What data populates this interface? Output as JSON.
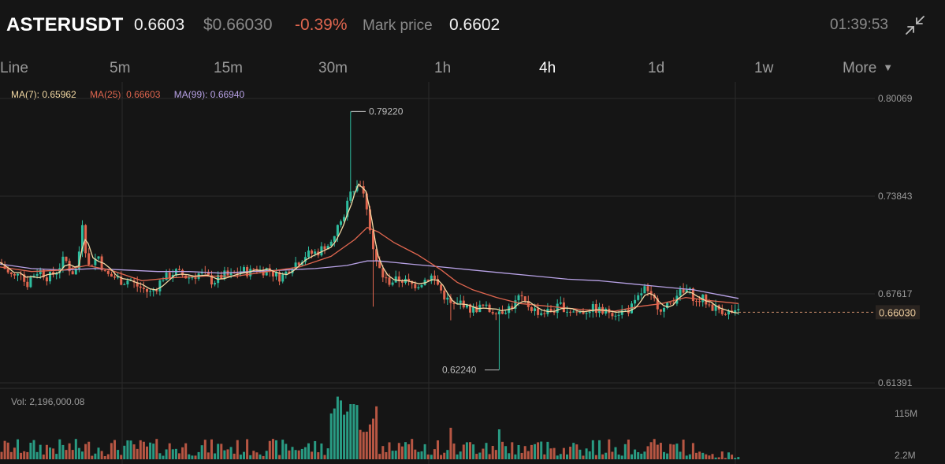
{
  "header": {
    "symbol": "ASTERUSDT",
    "last_price": "0.6603",
    "usd_price": "$0.66030",
    "change": "-0.39%",
    "mark_price_label": "Mark price",
    "mark_price": "0.6602",
    "time": "01:39:53",
    "collapse_icon": "collapse-arrows-icon"
  },
  "tabs": [
    {
      "label": "Line",
      "active": false
    },
    {
      "label": "5m",
      "active": false
    },
    {
      "label": "15m",
      "active": false
    },
    {
      "label": "30m",
      "active": false
    },
    {
      "label": "1h",
      "active": false
    },
    {
      "label": "4h",
      "active": true
    },
    {
      "label": "1d",
      "active": false
    },
    {
      "label": "1w",
      "active": false
    },
    {
      "label": "More",
      "active": false
    }
  ],
  "legend": {
    "ma7": "MA(7): 0.65962",
    "ma25": "MA(25): 0.66603",
    "ma99": "MA(99): 0.66940"
  },
  "vol_label": "Vol: 2,196,000.08",
  "colors": {
    "background": "#151515",
    "up": "#2ebd9f",
    "down": "#e0664f",
    "ma7": "#f3d9a4",
    "ma25": "#e0664f",
    "ma99": "#b8a2e6",
    "grid": "#2a2a2a",
    "axis_text": "#9a9a9a"
  },
  "chart_data": {
    "type": "candlestick",
    "price_axis_ticks": [
      "0.80069",
      "0.73843",
      "0.67617",
      "0.61391"
    ],
    "price_ylim": [
      0.61391,
      0.80069
    ],
    "current_price_label": "0.66030",
    "annotations": {
      "high": "0.79220",
      "low": "0.62240"
    },
    "volume_axis_ticks": [
      "115M",
      "2.2M"
    ],
    "ma_values": {
      "ma7": 0.65962,
      "ma25": 0.66603,
      "ma99": 0.6694
    },
    "price_path": [
      [
        0,
        0.693
      ],
      [
        5,
        0.69
      ],
      [
        10,
        0.686
      ],
      [
        18,
        0.683
      ],
      [
        25,
        0.69
      ],
      [
        33,
        0.677
      ],
      [
        40,
        0.684
      ],
      [
        50,
        0.688
      ],
      [
        60,
        0.683
      ],
      [
        70,
        0.686
      ],
      [
        75,
        0.69
      ],
      [
        82,
        0.696
      ],
      [
        88,
        0.689
      ],
      [
        95,
        0.685
      ],
      [
        100,
        0.698
      ],
      [
        104,
        0.722
      ],
      [
        108,
        0.704
      ],
      [
        112,
        0.69
      ],
      [
        118,
        0.694
      ],
      [
        125,
        0.697
      ],
      [
        132,
        0.686
      ],
      [
        140,
        0.684
      ],
      [
        148,
        0.683
      ],
      [
        156,
        0.68
      ],
      [
        164,
        0.682
      ],
      [
        172,
        0.678
      ],
      [
        180,
        0.676
      ],
      [
        190,
        0.673
      ],
      [
        198,
        0.676
      ],
      [
        206,
        0.683
      ],
      [
        214,
        0.684
      ],
      [
        222,
        0.687
      ],
      [
        230,
        0.685
      ],
      [
        238,
        0.683
      ],
      [
        246,
        0.684
      ],
      [
        254,
        0.686
      ],
      [
        262,
        0.684
      ],
      [
        270,
        0.68
      ],
      [
        276,
        0.682
      ],
      [
        284,
        0.685
      ],
      [
        292,
        0.684
      ],
      [
        300,
        0.686
      ],
      [
        308,
        0.688
      ],
      [
        316,
        0.686
      ],
      [
        324,
        0.69
      ],
      [
        332,
        0.687
      ],
      [
        340,
        0.689
      ],
      [
        348,
        0.685
      ],
      [
        356,
        0.683
      ],
      [
        364,
        0.687
      ],
      [
        372,
        0.692
      ],
      [
        380,
        0.694
      ],
      [
        388,
        0.698
      ],
      [
        396,
        0.699
      ],
      [
        404,
        0.7
      ],
      [
        412,
        0.704
      ],
      [
        420,
        0.705
      ],
      [
        426,
        0.712
      ],
      [
        432,
        0.722
      ],
      [
        436,
        0.719
      ],
      [
        440,
        0.73
      ],
      [
        446,
        0.745
      ],
      [
        450,
        0.74
      ],
      [
        455,
        0.748
      ],
      [
        460,
        0.738
      ],
      [
        464,
        0.734
      ],
      [
        468,
        0.721
      ],
      [
        472,
        0.706
      ],
      [
        476,
        0.695
      ],
      [
        480,
        0.69
      ],
      [
        486,
        0.684
      ],
      [
        492,
        0.68
      ],
      [
        500,
        0.681
      ],
      [
        508,
        0.682
      ],
      [
        516,
        0.68
      ],
      [
        524,
        0.678
      ],
      [
        532,
        0.679
      ],
      [
        540,
        0.682
      ],
      [
        548,
        0.684
      ],
      [
        556,
        0.678
      ],
      [
        562,
        0.672
      ],
      [
        568,
        0.668
      ],
      [
        574,
        0.664
      ],
      [
        580,
        0.665
      ],
      [
        586,
        0.668
      ],
      [
        592,
        0.663
      ],
      [
        598,
        0.662
      ],
      [
        606,
        0.663
      ],
      [
        614,
        0.664
      ],
      [
        622,
        0.661
      ],
      [
        630,
        0.662
      ],
      [
        636,
        0.661
      ],
      [
        644,
        0.663
      ],
      [
        652,
        0.665
      ],
      [
        658,
        0.67
      ],
      [
        664,
        0.667
      ],
      [
        672,
        0.664
      ],
      [
        680,
        0.661
      ],
      [
        688,
        0.66
      ],
      [
        696,
        0.661
      ],
      [
        704,
        0.662
      ],
      [
        712,
        0.665
      ],
      [
        718,
        0.662
      ],
      [
        726,
        0.661
      ],
      [
        734,
        0.66
      ],
      [
        742,
        0.661
      ],
      [
        750,
        0.663
      ],
      [
        758,
        0.662
      ],
      [
        766,
        0.66
      ],
      [
        774,
        0.661
      ],
      [
        782,
        0.66
      ],
      [
        790,
        0.661
      ],
      [
        798,
        0.662
      ],
      [
        806,
        0.666
      ],
      [
        812,
        0.672
      ],
      [
        818,
        0.676
      ],
      [
        824,
        0.67
      ],
      [
        830,
        0.668
      ],
      [
        836,
        0.664
      ],
      [
        842,
        0.662
      ],
      [
        848,
        0.665
      ],
      [
        854,
        0.668
      ],
      [
        860,
        0.674
      ],
      [
        866,
        0.672
      ],
      [
        872,
        0.675
      ],
      [
        878,
        0.672
      ],
      [
        884,
        0.666
      ],
      [
        890,
        0.67
      ],
      [
        896,
        0.667
      ],
      [
        902,
        0.664
      ],
      [
        908,
        0.663
      ],
      [
        914,
        0.662
      ],
      [
        920,
        0.661
      ],
      [
        926,
        0.66
      ],
      [
        932,
        0.659
      ],
      [
        937,
        0.6603
      ]
    ],
    "ma25_path": [
      [
        0,
        0.69
      ],
      [
        40,
        0.687
      ],
      [
        80,
        0.688
      ],
      [
        110,
        0.691
      ],
      [
        140,
        0.688
      ],
      [
        180,
        0.681
      ],
      [
        220,
        0.683
      ],
      [
        260,
        0.684
      ],
      [
        300,
        0.684
      ],
      [
        340,
        0.687
      ],
      [
        380,
        0.69
      ],
      [
        420,
        0.697
      ],
      [
        450,
        0.708
      ],
      [
        466,
        0.716
      ],
      [
        480,
        0.713
      ],
      [
        500,
        0.706
      ],
      [
        530,
        0.698
      ],
      [
        560,
        0.688
      ],
      [
        580,
        0.68
      ],
      [
        600,
        0.675
      ],
      [
        630,
        0.67
      ],
      [
        660,
        0.666
      ],
      [
        700,
        0.664
      ],
      [
        740,
        0.662
      ],
      [
        780,
        0.661
      ],
      [
        810,
        0.664
      ],
      [
        840,
        0.666
      ],
      [
        870,
        0.67
      ],
      [
        900,
        0.668
      ],
      [
        937,
        0.666
      ]
    ],
    "ma99_path": [
      [
        0,
        0.692
      ],
      [
        40,
        0.689
      ],
      [
        80,
        0.688
      ],
      [
        120,
        0.689
      ],
      [
        160,
        0.688
      ],
      [
        200,
        0.687
      ],
      [
        240,
        0.687
      ],
      [
        280,
        0.686
      ],
      [
        320,
        0.687
      ],
      [
        360,
        0.688
      ],
      [
        400,
        0.689
      ],
      [
        440,
        0.691
      ],
      [
        466,
        0.694
      ],
      [
        480,
        0.694
      ],
      [
        520,
        0.692
      ],
      [
        560,
        0.69
      ],
      [
        600,
        0.688
      ],
      [
        640,
        0.686
      ],
      [
        680,
        0.684
      ],
      [
        720,
        0.682
      ],
      [
        760,
        0.681
      ],
      [
        800,
        0.679
      ],
      [
        840,
        0.677
      ],
      [
        880,
        0.675
      ],
      [
        910,
        0.672
      ],
      [
        937,
        0.6694
      ]
    ]
  }
}
